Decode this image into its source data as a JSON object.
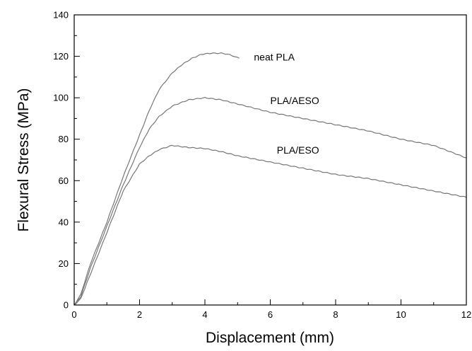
{
  "chart_data": {
    "type": "line",
    "title": "",
    "xlabel": "Displacement (mm)",
    "ylabel": "Flexural Stress (MPa)",
    "xlim": [
      0,
      12
    ],
    "ylim": [
      0,
      140
    ],
    "xticks": [
      0,
      2,
      4,
      6,
      8,
      10,
      12
    ],
    "xtick_labels": [
      "0",
      "2",
      "4",
      "6",
      "8",
      "10",
      "12"
    ],
    "yticks": [
      0,
      20,
      40,
      60,
      80,
      100,
      120,
      140
    ],
    "ytick_labels": [
      "0",
      "20",
      "40",
      "60",
      "80",
      "100",
      "120",
      "140"
    ],
    "x_minor_step": 1,
    "y_minor_step": 10,
    "grid": false,
    "series": [
      {
        "name": "neat PLA",
        "color": "#777777",
        "label_at": [
          5.5,
          118
        ],
        "points": [
          [
            0,
            0
          ],
          [
            0.2,
            5
          ],
          [
            0.5,
            20
          ],
          [
            1,
            40
          ],
          [
            1.5,
            62
          ],
          [
            2,
            82
          ],
          [
            2.3,
            94
          ],
          [
            2.6,
            104
          ],
          [
            3,
            112
          ],
          [
            3.3,
            116
          ],
          [
            3.6,
            119
          ],
          [
            3.9,
            121
          ],
          [
            4.2,
            121.5
          ],
          [
            4.5,
            121.5
          ],
          [
            4.7,
            121
          ],
          [
            4.9,
            120
          ],
          [
            5.05,
            119
          ]
        ]
      },
      {
        "name": "PLA/AESO",
        "color": "#777777",
        "label_at": [
          6,
          97
        ],
        "points": [
          [
            0,
            0
          ],
          [
            0.2,
            4
          ],
          [
            0.5,
            18
          ],
          [
            1,
            38
          ],
          [
            1.5,
            58
          ],
          [
            2,
            76
          ],
          [
            2.3,
            85
          ],
          [
            2.6,
            91
          ],
          [
            3,
            96
          ],
          [
            3.5,
            99
          ],
          [
            4,
            100
          ],
          [
            4.5,
            99
          ],
          [
            5,
            97
          ],
          [
            6,
            93
          ],
          [
            7,
            90
          ],
          [
            8,
            87
          ],
          [
            9,
            84
          ],
          [
            10,
            80
          ],
          [
            11,
            77
          ],
          [
            12,
            71
          ]
        ]
      },
      {
        "name": "PLA/ESO",
        "color": "#777777",
        "label_at": [
          6.2,
          73
        ],
        "points": [
          [
            0,
            0
          ],
          [
            0.2,
            3
          ],
          [
            0.5,
            15
          ],
          [
            1,
            35
          ],
          [
            1.5,
            55
          ],
          [
            2,
            68
          ],
          [
            2.3,
            72
          ],
          [
            2.6,
            75
          ],
          [
            3,
            77
          ],
          [
            3.5,
            76
          ],
          [
            4,
            75.5
          ],
          [
            4.5,
            74
          ],
          [
            5,
            72
          ],
          [
            6,
            69
          ],
          [
            7,
            66
          ],
          [
            8,
            63
          ],
          [
            9,
            61
          ],
          [
            10,
            58
          ],
          [
            11,
            55
          ],
          [
            12,
            52
          ]
        ]
      }
    ]
  }
}
